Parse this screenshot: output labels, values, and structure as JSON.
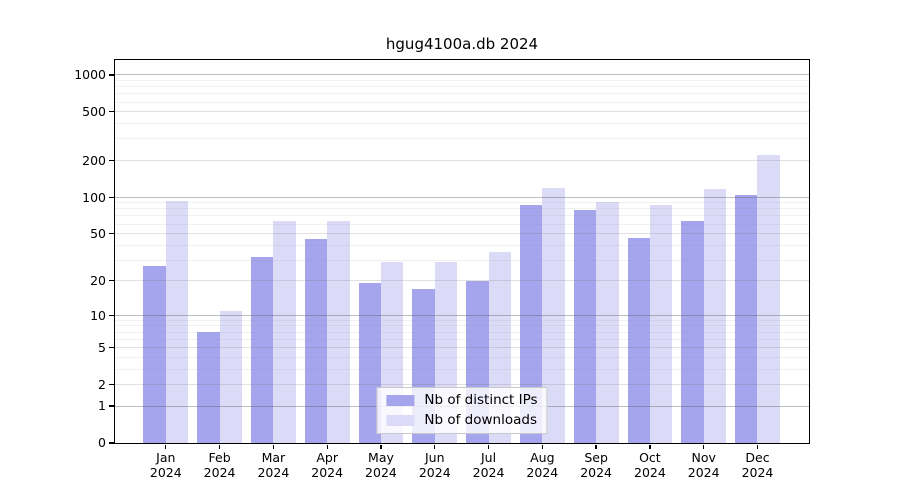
{
  "chart_data": {
    "type": "bar",
    "title": "hgug4100a.db 2024",
    "categories": [
      "Jan",
      "Feb",
      "Mar",
      "Apr",
      "May",
      "Jun",
      "Jul",
      "Aug",
      "Sep",
      "Oct",
      "Nov",
      "Dec"
    ],
    "year_label": "2024",
    "series": [
      {
        "name": "Nb of distinct IPs",
        "color": "#a5a5ee",
        "values": [
          27,
          7,
          32,
          45,
          19,
          17,
          20,
          87,
          79,
          46,
          64,
          104
        ]
      },
      {
        "name": "Nb of downloads",
        "color": "#dbdbf8",
        "values": [
          93,
          11,
          64,
          64,
          29,
          29,
          35,
          119,
          91,
          86,
          117,
          220
        ]
      }
    ],
    "yscale": "log1p",
    "ylim": [
      0,
      1325
    ],
    "yticks": [
      1000,
      500,
      200,
      100,
      50,
      20,
      10,
      5,
      2,
      1,
      0
    ],
    "xlabel": "",
    "ylabel": "",
    "grid": true,
    "gridlines_over_bars": true,
    "legend_position": "lower center",
    "background_color": "#ffffff",
    "spine_color": "#000000"
  }
}
